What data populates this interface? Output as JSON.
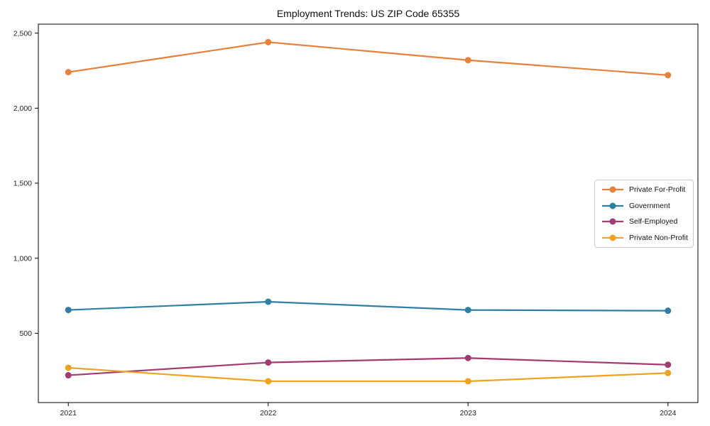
{
  "chart_data": {
    "type": "line",
    "title": "Employment Trends: US ZIP Code 65355",
    "categories": [
      2021,
      2022,
      2023,
      2024
    ],
    "x_tick_labels": [
      "2021",
      "2022",
      "2023",
      "2024"
    ],
    "y_ticks": [
      500,
      1000,
      1500,
      2000,
      2500
    ],
    "y_tick_labels": [
      "500",
      "1,000",
      "1,500",
      "2,000",
      "2,500"
    ],
    "series": [
      {
        "name": "Private For-Profit",
        "color": "#e5813d",
        "values": [
          2240,
          2440,
          2320,
          2220
        ]
      },
      {
        "name": "Government",
        "color": "#2e7fa3",
        "values": [
          655,
          710,
          655,
          650
        ]
      },
      {
        "name": "Self-Employed",
        "color": "#a23b72",
        "values": [
          220,
          305,
          335,
          290
        ]
      },
      {
        "name": "Private Non-Profit",
        "color": "#eea220",
        "values": [
          270,
          180,
          180,
          235
        ]
      }
    ],
    "xlabel": "",
    "ylabel": "",
    "xlim": [
      2020.85,
      2024.15
    ],
    "ylim": [
      38,
      2560
    ],
    "grid": false,
    "legend_position": "center right",
    "marker": "o"
  }
}
